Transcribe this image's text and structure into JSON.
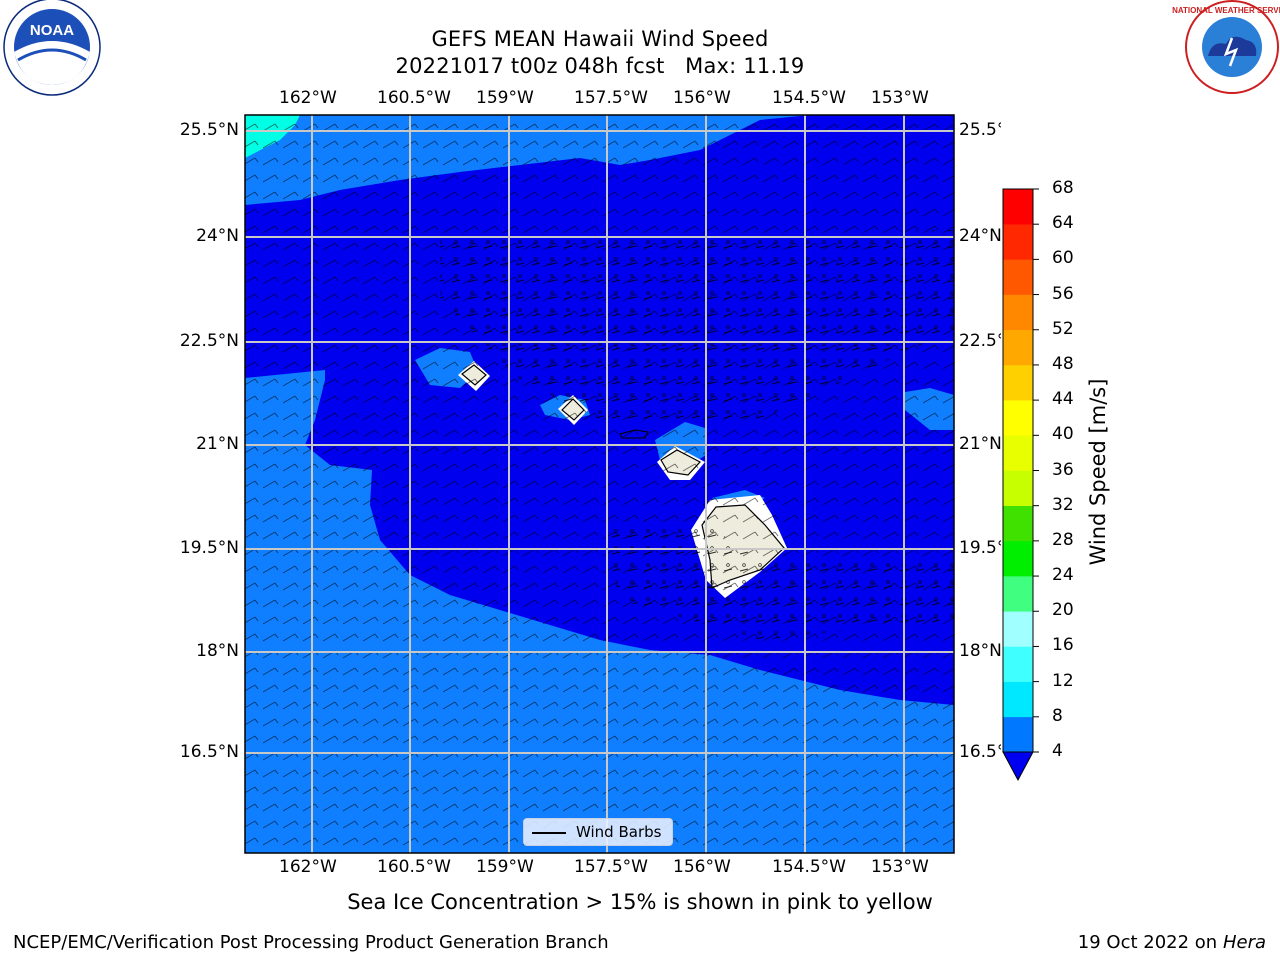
{
  "title": {
    "line1": "GEFS MEAN Hawaii Wind Speed",
    "line2": "20221017 t00z 048h fcst   Max: 11.19"
  },
  "map": {
    "lon_labels": [
      "162°W",
      "160.5°W",
      "159°W",
      "157.5°W",
      "156°W",
      "154.5°W",
      "153°W"
    ],
    "lat_labels": [
      "25.5°N",
      "24°N",
      "22.5°N",
      "21°N",
      "19.5°N",
      "18°N",
      "16.5°N"
    ],
    "legend_label": "Wind Barbs",
    "land_color": "#eeecdc",
    "ocean_colors": [
      "#0000ef",
      "#0f7fff",
      "#00ffe5"
    ]
  },
  "colorbar": {
    "label": "Wind Speed [m/s]",
    "ticks": [
      "68",
      "64",
      "60",
      "56",
      "52",
      "48",
      "44",
      "40",
      "36",
      "32",
      "28",
      "24",
      "20",
      "16",
      "12",
      "8",
      "4"
    ],
    "colors": [
      "#0000f0",
      "#0078ff",
      "#00e8ff",
      "#00ffff",
      "#3fffff",
      "#a0ffff",
      "#40ff80",
      "#00ee00",
      "#00e000",
      "#40e000",
      "#c8ff00",
      "#e8ff00",
      "#ffff00",
      "#ffd000",
      "#ffa800",
      "#ff8800",
      "#ff5800",
      "#ff2800",
      "#ff0000"
    ]
  },
  "note": "Sea Ice Concentration > 15% is shown in pink to yellow",
  "credit_left": "NCEP/EMC/Verification Post Processing Product Generation Branch",
  "credit_date": "19 Oct 2022 on ",
  "credit_machine": "Hera",
  "logos": {
    "left": "NOAA",
    "right": "NATIONAL WEATHER SERVICE"
  }
}
